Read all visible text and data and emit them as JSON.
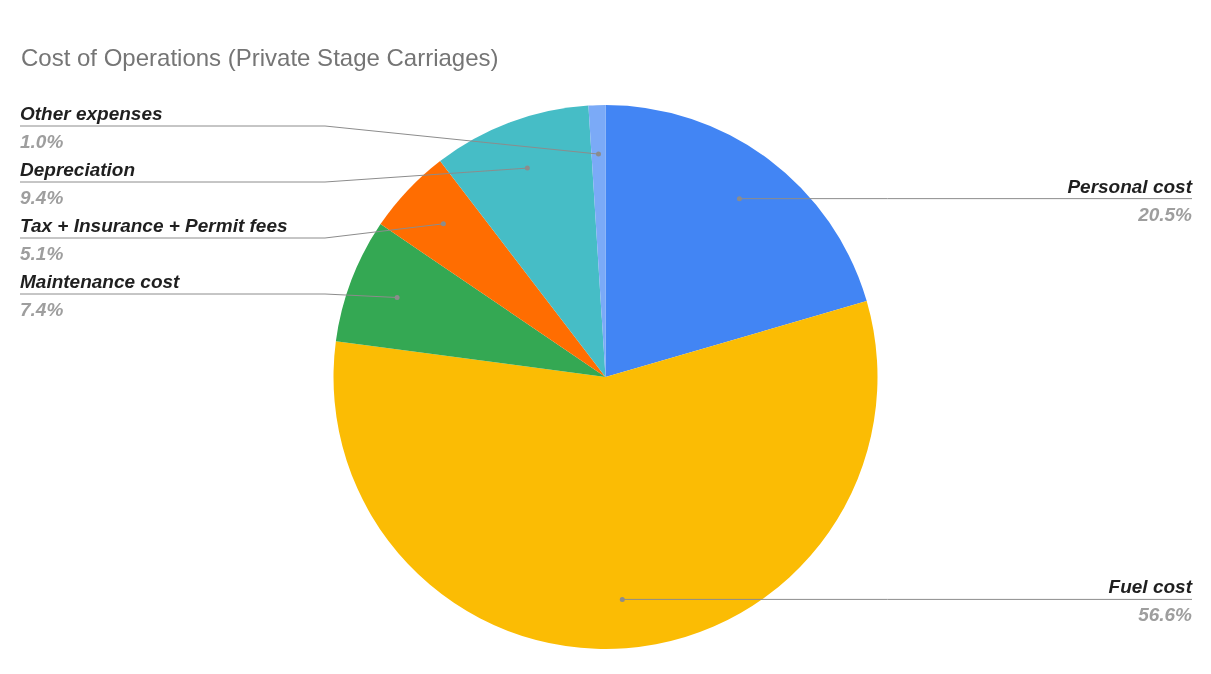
{
  "chart_data": {
    "type": "pie",
    "title": "Cost of Operations (Private Stage Carriages)",
    "categories": [
      "Personal cost",
      "Fuel cost",
      "Maintenance cost",
      "Tax + Insurance + Permit fees",
      "Depreciation",
      "Other expenses"
    ],
    "values": [
      20.5,
      56.6,
      7.4,
      5.1,
      9.4,
      1.0
    ],
    "colors": [
      "#4285f4",
      "#fbbc04",
      "#34a853",
      "#ff6d01",
      "#46bdc6",
      "#7baaf7"
    ],
    "value_labels": [
      "20.5%",
      "56.6%",
      "7.4%",
      "5.1%",
      "9.4%",
      "1.0%"
    ],
    "legend": false
  }
}
